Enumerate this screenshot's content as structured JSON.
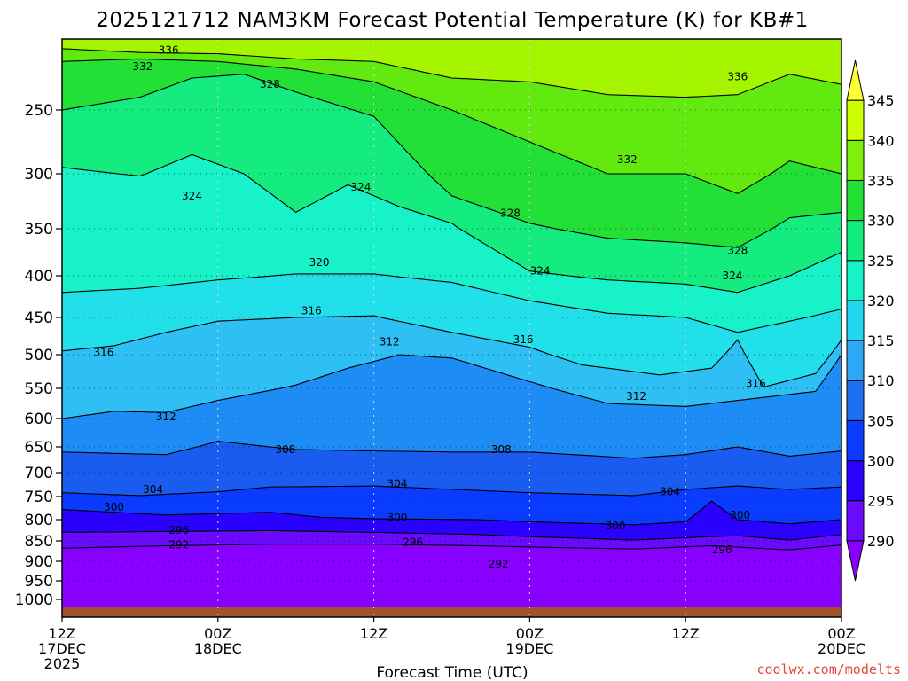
{
  "chart_data": {
    "type": "heatmap",
    "title": "2025121712 NAM3KM Forecast Potential Temperature (K) for KB#1",
    "xlabel": "Forecast Time (UTC)",
    "ylabel": "",
    "x_tick_labels": [
      {
        "hours": 0,
        "lines": [
          "12Z",
          "17DEC",
          "2025"
        ]
      },
      {
        "hours": 12,
        "lines": [
          "00Z",
          "18DEC"
        ]
      },
      {
        "hours": 24,
        "lines": [
          "12Z"
        ]
      },
      {
        "hours": 36,
        "lines": [
          "00Z",
          "19DEC"
        ]
      },
      {
        "hours": 48,
        "lines": [
          "12Z"
        ]
      },
      {
        "hours": 60,
        "lines": [
          "00Z",
          "20DEC"
        ]
      }
    ],
    "x_range_hours": [
      0,
      60
    ],
    "y_axis": "pressure (hPa)",
    "y_ticks": [
      250,
      300,
      350,
      400,
      450,
      500,
      550,
      600,
      650,
      700,
      750,
      800,
      850,
      900,
      950,
      1000
    ],
    "y_range": [
      200,
      1050
    ],
    "colorbar": {
      "levels": [
        290,
        295,
        300,
        305,
        310,
        315,
        320,
        325,
        330,
        335,
        340,
        345
      ],
      "colors": [
        "#8800ff",
        "#6a0aff",
        "#2a00ff",
        "#0a3cff",
        "#1e6ef0",
        "#2ea8f5",
        "#22d8ee",
        "#18f2c8",
        "#14ec80",
        "#22e035",
        "#7ef00c",
        "#ccff00",
        "#ffff33"
      ]
    },
    "contour_interval": 4,
    "series": [
      {
        "name": "292",
        "x": [
          0,
          8,
          16,
          24,
          32,
          36,
          44,
          50,
          56,
          60
        ],
        "values": [
          868,
          862,
          858,
          858,
          862,
          865,
          870,
          862,
          872,
          860
        ]
      },
      {
        "name": "296",
        "x": [
          0,
          8,
          16,
          24,
          32,
          36,
          44,
          50,
          52,
          56,
          60
        ],
        "values": [
          830,
          828,
          826,
          830,
          835,
          840,
          848,
          840,
          838,
          848,
          835
        ]
      },
      {
        "name": "300",
        "x": [
          0,
          8,
          16,
          20,
          24,
          32,
          36,
          44,
          48,
          50,
          52,
          56,
          60
        ],
        "values": [
          778,
          790,
          784,
          795,
          798,
          800,
          805,
          812,
          805,
          760,
          800,
          810,
          800
        ]
      },
      {
        "name": "304",
        "x": [
          0,
          6,
          12,
          16,
          24,
          30,
          36,
          44,
          48,
          52,
          56,
          60
        ],
        "values": [
          742,
          748,
          740,
          730,
          728,
          735,
          742,
          748,
          735,
          728,
          735,
          730
        ]
      },
      {
        "name": "308",
        "x": [
          0,
          8,
          12,
          18,
          24,
          30,
          36,
          44,
          48,
          52,
          56,
          60
        ],
        "values": [
          660,
          665,
          640,
          655,
          658,
          660,
          660,
          672,
          665,
          650,
          668,
          658
        ]
      },
      {
        "name": "312",
        "x": [
          0,
          4,
          8,
          12,
          18,
          22,
          26,
          30,
          36,
          42,
          48,
          54,
          58,
          60
        ],
        "values": [
          600,
          588,
          590,
          570,
          545,
          520,
          500,
          505,
          540,
          575,
          580,
          565,
          555,
          500
        ]
      },
      {
        "name": "316",
        "x": [
          0,
          4,
          8,
          12,
          18,
          24,
          30,
          36,
          40,
          46,
          50,
          52,
          54,
          58,
          60
        ],
        "values": [
          495,
          488,
          470,
          455,
          450,
          448,
          470,
          490,
          515,
          530,
          520,
          480,
          548,
          528,
          480
        ]
      },
      {
        "name": "320",
        "x": [
          0,
          6,
          12,
          18,
          24,
          30,
          36,
          42,
          48,
          52,
          56,
          60
        ],
        "values": [
          420,
          415,
          405,
          398,
          398,
          408,
          430,
          445,
          450,
          470,
          455,
          440
        ]
      },
      {
        "name": "324",
        "x": [
          0,
          6,
          10,
          14,
          18,
          22,
          26,
          30,
          36,
          42,
          48,
          52,
          56,
          60
        ],
        "values": [
          295,
          302,
          285,
          300,
          335,
          310,
          330,
          345,
          395,
          405,
          410,
          420,
          400,
          375
        ]
      },
      {
        "name": "328",
        "x": [
          0,
          6,
          10,
          14,
          18,
          24,
          30,
          36,
          42,
          48,
          52,
          56,
          60
        ],
        "values": [
          250,
          240,
          225,
          222,
          236,
          255,
          320,
          345,
          360,
          365,
          370,
          340,
          335
        ]
      },
      {
        "name": "332",
        "x": [
          0,
          6,
          12,
          18,
          24,
          30,
          36,
          42,
          48,
          52,
          56,
          60
        ],
        "values": [
          212,
          210,
          212,
          218,
          228,
          250,
          275,
          300,
          300,
          318,
          290,
          300
        ]
      },
      {
        "name": "336",
        "x": [
          0,
          6,
          12,
          18,
          24,
          30,
          36,
          42,
          48,
          52,
          56,
          60
        ],
        "values": [
          202,
          205,
          206,
          210,
          212,
          225,
          228,
          238,
          240,
          238,
          222,
          230
        ]
      }
    ],
    "contour_labels": [
      {
        "text": "336",
        "x": 8.2,
        "p": 203
      },
      {
        "text": "332",
        "x": 6.2,
        "p": 216
      },
      {
        "text": "328",
        "x": 16.0,
        "p": 230
      },
      {
        "text": "324",
        "x": 10.0,
        "p": 320
      },
      {
        "text": "324",
        "x": 23.0,
        "p": 312
      },
      {
        "text": "328",
        "x": 34.5,
        "p": 336
      },
      {
        "text": "332",
        "x": 43.5,
        "p": 289
      },
      {
        "text": "324",
        "x": 36.8,
        "p": 395
      },
      {
        "text": "324",
        "x": 51.6,
        "p": 400
      },
      {
        "text": "328",
        "x": 52.0,
        "p": 373
      },
      {
        "text": "336",
        "x": 52.0,
        "p": 224
      },
      {
        "text": "320",
        "x": 19.8,
        "p": 386
      },
      {
        "text": "316",
        "x": 19.2,
        "p": 442
      },
      {
        "text": "316",
        "x": 3.2,
        "p": 497
      },
      {
        "text": "312",
        "x": 25.2,
        "p": 483
      },
      {
        "text": "316",
        "x": 35.5,
        "p": 480
      },
      {
        "text": "312",
        "x": 44.2,
        "p": 563
      },
      {
        "text": "316",
        "x": 53.4,
        "p": 543
      },
      {
        "text": "312",
        "x": 8.0,
        "p": 597
      },
      {
        "text": "308",
        "x": 17.2,
        "p": 655
      },
      {
        "text": "308",
        "x": 33.8,
        "p": 655
      },
      {
        "text": "304",
        "x": 7.0,
        "p": 735
      },
      {
        "text": "304",
        "x": 25.8,
        "p": 723
      },
      {
        "text": "304",
        "x": 46.8,
        "p": 740
      },
      {
        "text": "300",
        "x": 4.0,
        "p": 773
      },
      {
        "text": "300",
        "x": 25.8,
        "p": 795
      },
      {
        "text": "300",
        "x": 42.6,
        "p": 815
      },
      {
        "text": "300",
        "x": 52.2,
        "p": 790
      },
      {
        "text": "296",
        "x": 9.0,
        "p": 825
      },
      {
        "text": "296",
        "x": 27.0,
        "p": 853
      },
      {
        "text": "296",
        "x": 50.8,
        "p": 872
      },
      {
        "text": "292",
        "x": 9.0,
        "p": 860
      },
      {
        "text": "292",
        "x": 33.6,
        "p": 907
      }
    ]
  },
  "credit": "coolwx.com/modelts"
}
